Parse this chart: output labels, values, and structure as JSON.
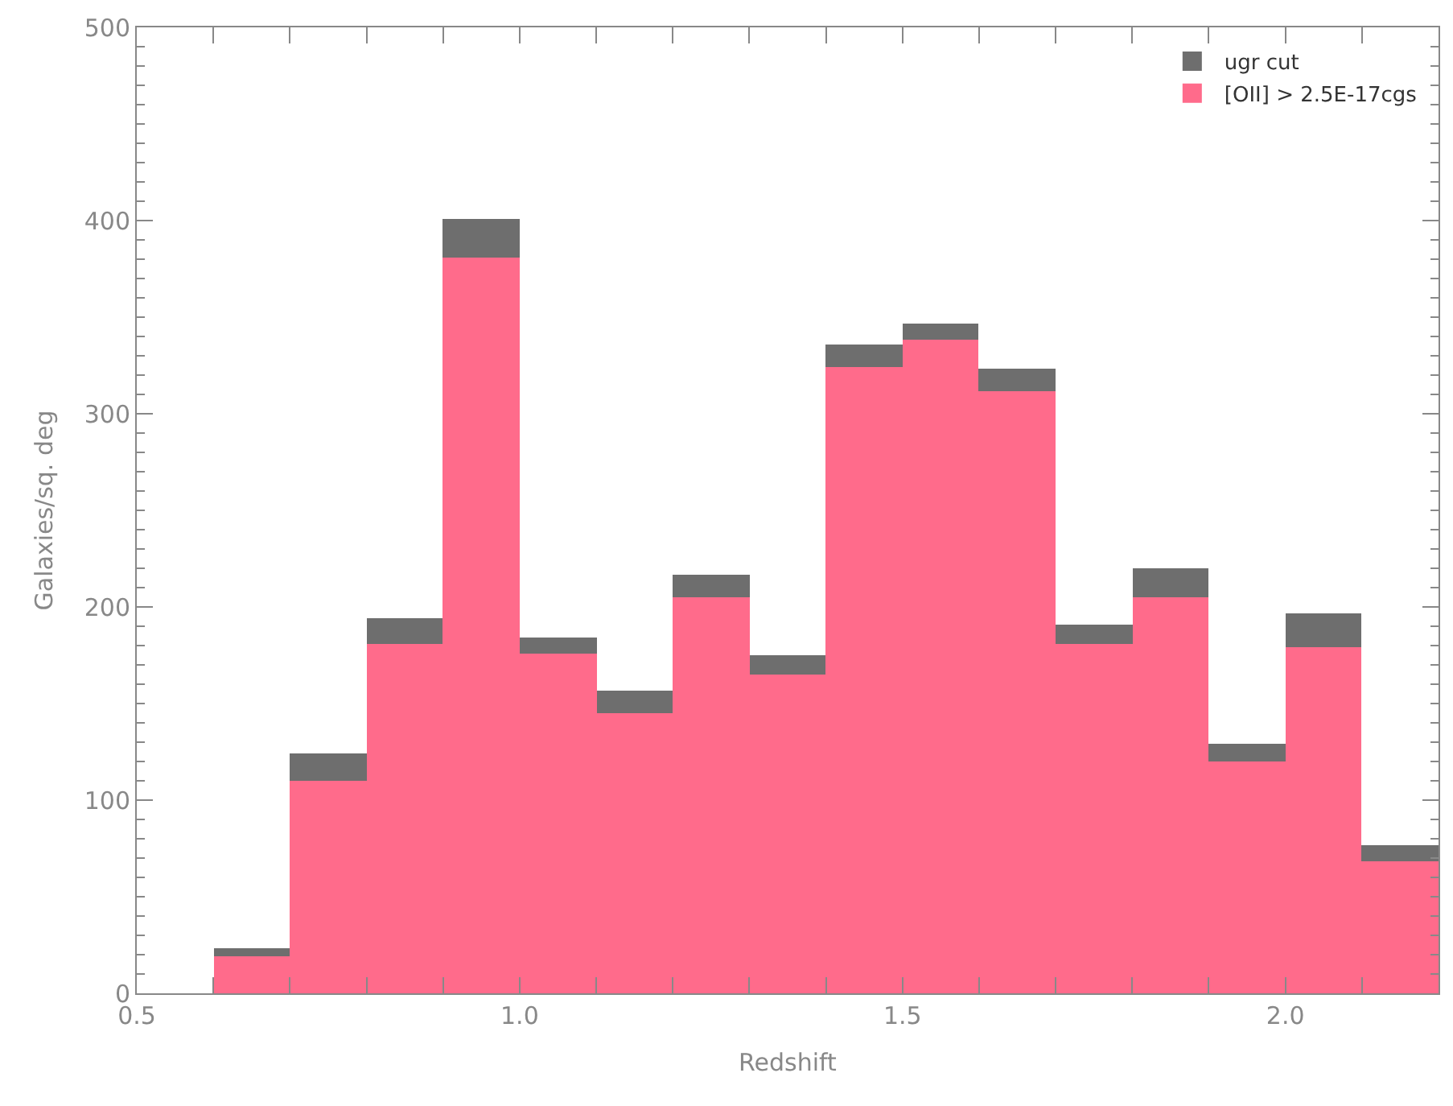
{
  "chart_data": {
    "type": "bar",
    "xlabel": "Redshift",
    "ylabel": "Galaxies/sq. deg",
    "x": [
      0.55,
      0.65,
      0.75,
      0.85,
      0.95,
      1.05,
      1.15,
      1.25,
      1.35,
      1.45,
      1.55,
      1.65,
      1.75,
      1.85,
      1.95,
      2.05,
      2.15
    ],
    "stacked": true,
    "series": [
      {
        "name": "[OII] > 2.5E-17cgs",
        "color": "#ff6b8b",
        "values": [
          0,
          19,
          110,
          181,
          381,
          176,
          145,
          205,
          165,
          324,
          338,
          312,
          181,
          205,
          120,
          179,
          68
        ]
      },
      {
        "name": "ugr cut",
        "color": "#6e6e6e",
        "values": [
          0,
          4,
          14,
          13,
          20,
          8,
          12,
          12,
          10,
          12,
          9,
          11,
          10,
          15,
          9,
          18,
          9
        ]
      }
    ],
    "xlim": [
      0.5,
      2.2
    ],
    "xticks": [
      {
        "value": 0.5,
        "label": "0.5"
      },
      {
        "value": 0.6,
        "label": null
      },
      {
        "value": 0.7,
        "label": null
      },
      {
        "value": 0.8,
        "label": null
      },
      {
        "value": 0.9,
        "label": null
      },
      {
        "value": 1.0,
        "label": "1.0"
      },
      {
        "value": 1.1,
        "label": null
      },
      {
        "value": 1.2,
        "label": null
      },
      {
        "value": 1.3,
        "label": null
      },
      {
        "value": 1.4,
        "label": null
      },
      {
        "value": 1.5,
        "label": "1.5"
      },
      {
        "value": 1.6,
        "label": null
      },
      {
        "value": 1.7,
        "label": null
      },
      {
        "value": 1.8,
        "label": null
      },
      {
        "value": 1.9,
        "label": null
      },
      {
        "value": 2.0,
        "label": "2.0"
      },
      {
        "value": 2.1,
        "label": null
      },
      {
        "value": 2.2,
        "label": null
      }
    ],
    "ylim": [
      0,
      500
    ],
    "yticks": [
      0,
      100,
      200,
      300,
      400,
      500
    ],
    "legend": "top right"
  }
}
